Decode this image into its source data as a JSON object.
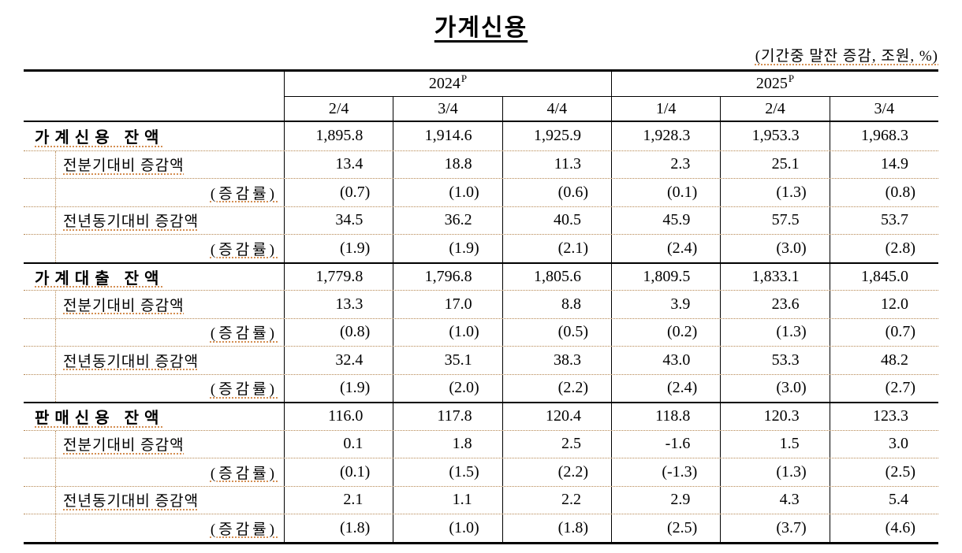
{
  "title": "가계신용",
  "unit_note": "(기간중 말잔 증감, 조원, %)",
  "table": {
    "col_groups": [
      {
        "year": "2024",
        "sup": "P"
      },
      {
        "year": "2025",
        "sup": "P"
      }
    ],
    "quarters": [
      "2/4",
      "3/4",
      "4/4",
      "1/4",
      "2/4",
      "3/4"
    ],
    "sections": [
      {
        "rows": [
          {
            "type": "main",
            "label": "가계신용 잔액",
            "values": [
              "1,895.8",
              "1,914.6",
              "1,925.9",
              "1,928.3",
              "1,953.3",
              "1,968.3"
            ]
          },
          {
            "type": "sub",
            "label": "전분기대비 증감액",
            "values": [
              "13.4",
              "18.8",
              "11.3",
              "2.3",
              "25.1",
              "14.9"
            ]
          },
          {
            "type": "rate",
            "label": "(증감률)",
            "values": [
              "(0.7)",
              "(1.0)",
              "(0.6)",
              "(0.1)",
              "(1.3)",
              "(0.8)"
            ]
          },
          {
            "type": "sub",
            "label": "전년동기대비 증감액",
            "values": [
              "34.5",
              "36.2",
              "40.5",
              "45.9",
              "57.5",
              "53.7"
            ]
          },
          {
            "type": "rate",
            "label": "(증감률)",
            "values": [
              "(1.9)",
              "(1.9)",
              "(2.1)",
              "(2.4)",
              "(3.0)",
              "(2.8)"
            ]
          }
        ]
      },
      {
        "rows": [
          {
            "type": "main",
            "label": "가계대출 잔액",
            "values": [
              "1,779.8",
              "1,796.8",
              "1,805.6",
              "1,809.5",
              "1,833.1",
              "1,845.0"
            ]
          },
          {
            "type": "sub",
            "label": "전분기대비 증감액",
            "values": [
              "13.3",
              "17.0",
              "8.8",
              "3.9",
              "23.6",
              "12.0"
            ]
          },
          {
            "type": "rate",
            "label": "(증감률)",
            "values": [
              "(0.8)",
              "(1.0)",
              "(0.5)",
              "(0.2)",
              "(1.3)",
              "(0.7)"
            ]
          },
          {
            "type": "sub",
            "label": "전년동기대비 증감액",
            "values": [
              "32.4",
              "35.1",
              "38.3",
              "43.0",
              "53.3",
              "48.2"
            ]
          },
          {
            "type": "rate",
            "label": "(증감률)",
            "values": [
              "(1.9)",
              "(2.0)",
              "(2.2)",
              "(2.4)",
              "(3.0)",
              "(2.7)"
            ]
          }
        ]
      },
      {
        "rows": [
          {
            "type": "main",
            "label": "판매신용 잔액",
            "values": [
              "116.0",
              "117.8",
              "120.4",
              "118.8",
              "120.3",
              "123.3"
            ]
          },
          {
            "type": "sub",
            "label": "전분기대비 증감액",
            "values": [
              "0.1",
              "1.8",
              "2.5",
              "-1.6",
              "1.5",
              "3.0"
            ]
          },
          {
            "type": "rate",
            "label": "(증감률)",
            "values": [
              "(0.1)",
              "(1.5)",
              "(2.2)",
              "(-1.3)",
              "(1.3)",
              "(2.5)"
            ]
          },
          {
            "type": "sub",
            "label": "전년동기대비 증감액",
            "values": [
              "2.1",
              "1.1",
              "2.2",
              "2.9",
              "4.3",
              "5.4"
            ]
          },
          {
            "type": "rate",
            "label": "(증감률)",
            "values": [
              "(1.8)",
              "(1.0)",
              "(1.8)",
              "(2.5)",
              "(3.7)",
              "(4.6)"
            ]
          }
        ]
      }
    ]
  }
}
